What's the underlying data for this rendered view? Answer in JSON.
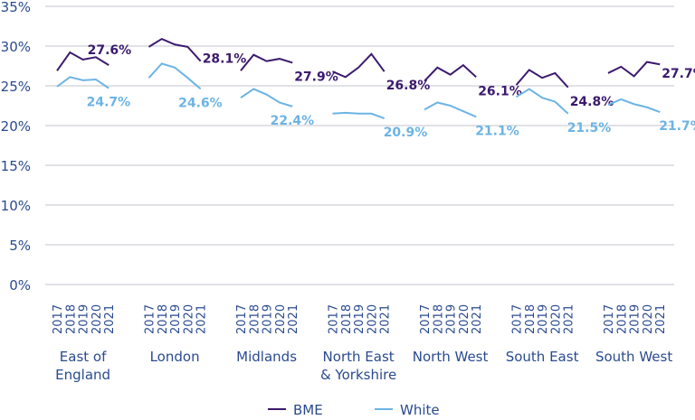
{
  "chart_data": {
    "type": "line",
    "title": "",
    "xlabel": "",
    "ylabel": "",
    "ylim": [
      0,
      35
    ],
    "yticks": [
      "0%",
      "5%",
      "10%",
      "15%",
      "20%",
      "25%",
      "30%",
      "35%"
    ],
    "years": [
      "2017",
      "2018",
      "2019",
      "2020",
      "2021"
    ],
    "grid": true,
    "legend_position": "bottom",
    "colors": {
      "BME": "#3b1a6e",
      "White": "#6cb4e4",
      "text": "#2a4a8f",
      "grid": "#d5d8dd"
    },
    "groups": [
      {
        "name": "East of England",
        "label_lines": [
          "East of",
          "England"
        ],
        "BME": [
          26.9,
          29.2,
          28.3,
          28.6,
          27.6
        ],
        "White": [
          24.9,
          26.1,
          25.7,
          25.8,
          24.7
        ],
        "BME_label": "27.6%",
        "White_label": "24.7%"
      },
      {
        "name": "London",
        "label_lines": [
          "London"
        ],
        "BME": [
          29.9,
          30.9,
          30.2,
          29.9,
          28.1
        ],
        "White": [
          26.0,
          27.8,
          27.3,
          26.0,
          24.6
        ],
        "BME_label": "28.1%",
        "White_label": "24.6%"
      },
      {
        "name": "Midlands",
        "label_lines": [
          "Midlands"
        ],
        "BME": [
          26.9,
          28.9,
          28.1,
          28.4,
          27.9
        ],
        "White": [
          23.5,
          24.6,
          23.9,
          22.9,
          22.4
        ],
        "BME_label": "27.9%",
        "White_label": "22.4%"
      },
      {
        "name": "North East & Yorkshire",
        "label_lines": [
          "North East",
          "& Yorkshire"
        ],
        "BME": [
          26.8,
          26.1,
          27.3,
          29.0,
          26.8
        ],
        "White": [
          21.5,
          21.6,
          21.5,
          21.5,
          20.9
        ],
        "BME_label": "26.8%",
        "White_label": "20.9%"
      },
      {
        "name": "North West",
        "label_lines": [
          "North West"
        ],
        "BME": [
          25.6,
          27.3,
          26.4,
          27.6,
          26.1
        ],
        "White": [
          22.0,
          22.9,
          22.5,
          21.8,
          21.1
        ],
        "BME_label": "26.1%",
        "White_label": "21.1%"
      },
      {
        "name": "South East",
        "label_lines": [
          "South East"
        ],
        "BME": [
          25.1,
          27.0,
          26.0,
          26.6,
          24.8
        ],
        "White": [
          23.6,
          24.6,
          23.5,
          23.0,
          21.5
        ],
        "BME_label": "24.8%",
        "White_label": "21.5%"
      },
      {
        "name": "South West",
        "label_lines": [
          "South West"
        ],
        "BME": [
          26.6,
          27.4,
          26.2,
          28.0,
          27.7
        ],
        "White": [
          22.6,
          23.3,
          22.7,
          22.3,
          21.7
        ],
        "BME_label": "27.7%",
        "White_label": "21.7%"
      }
    ],
    "legend": [
      "BME",
      "White"
    ]
  }
}
